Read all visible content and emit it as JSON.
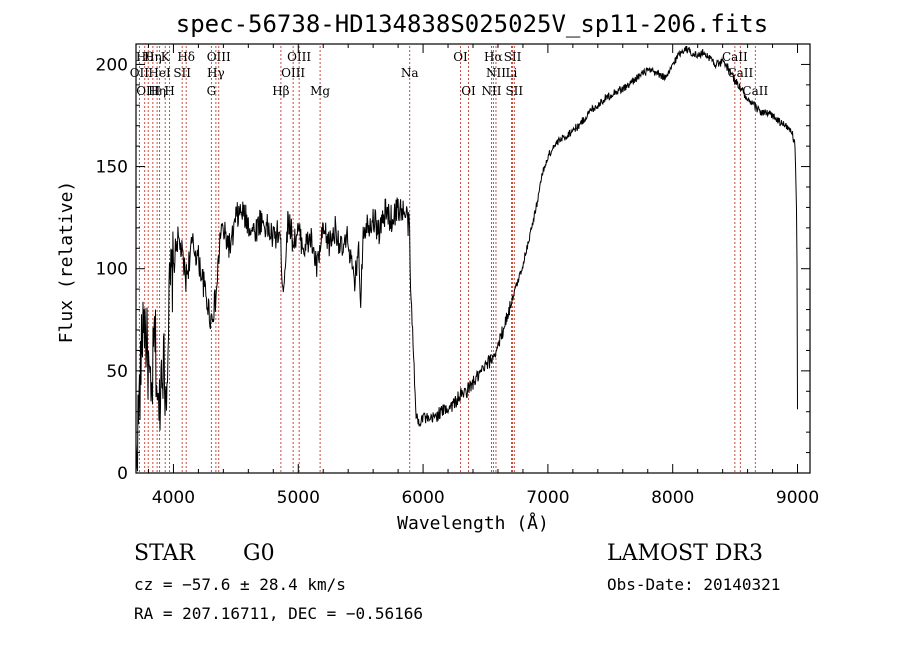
{
  "chart_data": {
    "type": "line",
    "title": "spec-56738-HD134838S025025V_sp11-206.fits",
    "xlabel": "Wavelength (Å)",
    "ylabel": "Flux (relative)",
    "xlim": [
      3700,
      9100
    ],
    "ylim": [
      0,
      210
    ],
    "xticks": [
      4000,
      5000,
      6000,
      7000,
      8000,
      9000
    ],
    "yticks": [
      0,
      50,
      100,
      150,
      200
    ],
    "series": [
      {
        "name": "flux",
        "x": [
          3700,
          3730,
          3760,
          3790,
          3820,
          3850,
          3880,
          3910,
          3940,
          3970,
          4000,
          4030,
          4060,
          4100,
          4150,
          4200,
          4250,
          4300,
          4340,
          4380,
          4420,
          4460,
          4500,
          4550,
          4600,
          4650,
          4700,
          4750,
          4800,
          4850,
          4880,
          4920,
          4960,
          5000,
          5050,
          5100,
          5150,
          5200,
          5250,
          5300,
          5350,
          5400,
          5450,
          5480,
          5500,
          5520,
          5560,
          5600,
          5650,
          5700,
          5750,
          5800,
          5840,
          5870,
          5890,
          5900,
          5920,
          5940,
          5960,
          6000,
          6050,
          6100,
          6150,
          6200,
          6250,
          6300,
          6350,
          6400,
          6450,
          6500,
          6550,
          6600,
          6650,
          6700,
          6750,
          6800,
          6850,
          6900,
          6950,
          7000,
          7050,
          7100,
          7150,
          7200,
          7250,
          7300,
          7350,
          7400,
          7450,
          7500,
          7550,
          7600,
          7650,
          7700,
          7750,
          7800,
          7850,
          7900,
          7950,
          8000,
          8050,
          8100,
          8150,
          8200,
          8250,
          8300,
          8350,
          8400,
          8450,
          8500,
          8550,
          8600,
          8650,
          8700,
          8750,
          8800,
          8850,
          8900,
          8950,
          8980,
          8995,
          9000
        ],
        "y": [
          5,
          40,
          80,
          60,
          30,
          70,
          25,
          60,
          40,
          90,
          100,
          115,
          110,
          95,
          112,
          105,
          90,
          75,
          85,
          120,
          115,
          110,
          125,
          128,
          122,
          118,
          124,
          120,
          115,
          118,
          90,
          125,
          113,
          118,
          110,
          115,
          100,
          118,
          112,
          120,
          108,
          115,
          90,
          112,
          85,
          120,
          122,
          125,
          118,
          128,
          124,
          130,
          128,
          125,
          120,
          90,
          65,
          30,
          25,
          28,
          25,
          28,
          30,
          32,
          34,
          38,
          40,
          44,
          48,
          52,
          56,
          62,
          72,
          82,
          92,
          102,
          115,
          128,
          145,
          155,
          160,
          163,
          165,
          168,
          170,
          174,
          178,
          180,
          183,
          185,
          187,
          188,
          190,
          193,
          195,
          197,
          196,
          195,
          193,
          200,
          205,
          208,
          206,
          204,
          206,
          203,
          200,
          201,
          198,
          192,
          188,
          182,
          180,
          177,
          176,
          175,
          172,
          170,
          168,
          160,
          120,
          30
        ]
      }
    ],
    "lines": [
      {
        "wave": 3727,
        "row": 1,
        "label": "OII"
      },
      {
        "wave": 3770,
        "row": 0,
        "label": "Hθ"
      },
      {
        "wave": 3798,
        "row": 2,
        "label": "OIII"
      },
      {
        "wave": 3835,
        "row": 0,
        "label": "Hη"
      },
      {
        "wave": 3869,
        "row": 2,
        "label": "Hη"
      },
      {
        "wave": 3889,
        "row": 1,
        "label": "HeI"
      },
      {
        "wave": 3934,
        "row": 0,
        "label": "K"
      },
      {
        "wave": 3969,
        "row": 2,
        "label": "H"
      },
      {
        "wave": 4070,
        "row": 1,
        "label": "SII"
      },
      {
        "wave": 4102,
        "row": 0,
        "label": "Hδ"
      },
      {
        "wave": 4304,
        "row": 2,
        "label": "G"
      },
      {
        "wave": 4340,
        "row": 1,
        "label": "Hγ"
      },
      {
        "wave": 4363,
        "row": 0,
        "label": "OIII"
      },
      {
        "wave": 4861,
        "row": 2,
        "label": "Hβ"
      },
      {
        "wave": 4959,
        "row": 1,
        "label": "OIII"
      },
      {
        "wave": 5007,
        "row": 0,
        "label": "OIII"
      },
      {
        "wave": 5175,
        "row": 2,
        "label": "Mg"
      },
      {
        "wave": 5893,
        "row": 1,
        "label": "Na"
      },
      {
        "wave": 6300,
        "row": 0,
        "label": "OI"
      },
      {
        "wave": 6364,
        "row": 2,
        "label": "OI"
      },
      {
        "wave": 6548,
        "row": 2,
        "label": "NII"
      },
      {
        "wave": 6563,
        "row": 0,
        "label": "Hα"
      },
      {
        "wave": 6584,
        "row": 1,
        "label": "NII"
      },
      {
        "wave": 6708,
        "row": 1,
        "label": "Li"
      },
      {
        "wave": 6717,
        "row": 0,
        "label": "SII"
      },
      {
        "wave": 6731,
        "row": 2,
        "label": "SII"
      },
      {
        "wave": 8498,
        "row": 0,
        "label": "CaII"
      },
      {
        "wave": 8542,
        "row": 1,
        "label": "CaII"
      },
      {
        "wave": 8662,
        "row": 2,
        "label": "CaII"
      }
    ]
  },
  "info": {
    "object_class": "STAR",
    "subclass": "G0",
    "survey": "LAMOST DR3",
    "cz": "cz = −57.6 ± 28.4 km/s",
    "obs_date": "Obs-Date: 20140321",
    "coords": "RA = 207.16711, DEC =  −0.56166"
  }
}
